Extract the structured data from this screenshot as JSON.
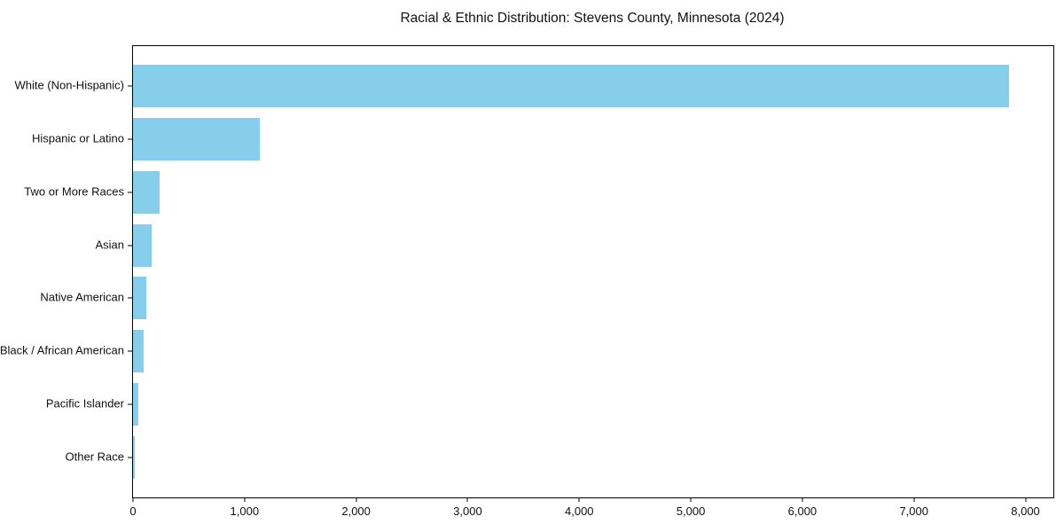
{
  "chart_data": {
    "type": "bar",
    "orientation": "horizontal",
    "title": "Racial & Ethnic Distribution: Stevens County, Minnesota (2024)",
    "categories": [
      "White (Non-Hispanic)",
      "Hispanic or Latino",
      "Two or More Races",
      "Asian",
      "Native American",
      "Black / African American",
      "Pacific Islander",
      "Other Race"
    ],
    "values": [
      7850,
      1140,
      240,
      170,
      120,
      95,
      45,
      15
    ],
    "xlabel": "",
    "ylabel": "",
    "xlim": [
      0,
      8250
    ],
    "x_ticks": [
      0,
      1000,
      2000,
      3000,
      4000,
      5000,
      6000,
      7000,
      8000
    ],
    "x_tick_labels": [
      "0",
      "1,000",
      "2,000",
      "3,000",
      "4,000",
      "5,000",
      "6,000",
      "7,000",
      "8,000"
    ],
    "bar_color": "#87CEEB",
    "background_color": "#ffffff",
    "text_color": "#111111",
    "grid": false,
    "legend": null
  }
}
